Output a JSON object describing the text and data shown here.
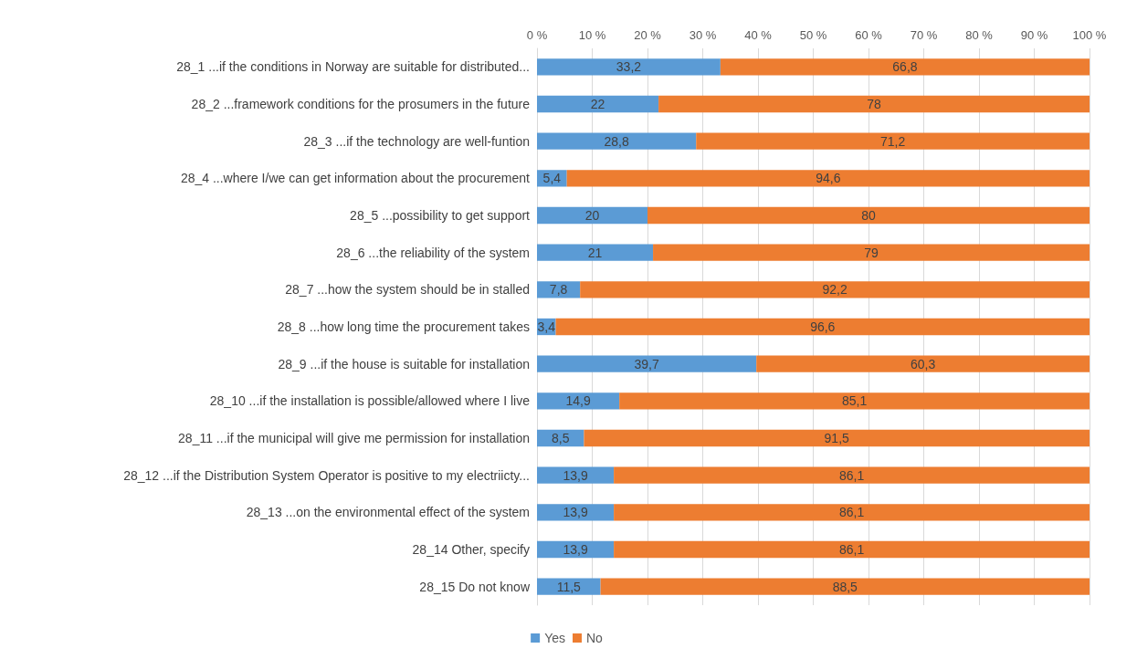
{
  "chart_data": {
    "type": "bar",
    "orientation": "horizontal",
    "stacked": true,
    "categories": [
      "28_1 ...if the conditions in Norway are suitable for distributed...",
      "28_2 ...framework conditions for the prosumers in the future",
      "28_3 ...if the technology are well-funtion",
      "28_4 ...where I/we can get information about the procurement",
      "28_5 ...possibility to get support",
      "28_6 ...the reliability of the system",
      "28_7 ...how the system should be in stalled",
      "28_8 ...how long time the procurement takes",
      "28_9 ...if the house is suitable for installation",
      "28_10 ...if the installation is possible/allowed where I live",
      "28_11 ...if the municipal will give me permission for installation",
      "28_12 ...if the Distribution System Operator is positive to my electriicty...",
      "28_13 ...on the environmental effect of the system",
      "28_14 Other, specify",
      "28_15 Do not know"
    ],
    "series": [
      {
        "name": "Yes",
        "color": "#5b9bd5",
        "values": [
          33.2,
          22,
          28.8,
          5.4,
          20,
          21,
          7.8,
          3.4,
          39.7,
          14.9,
          8.5,
          13.9,
          13.9,
          13.9,
          11.5
        ],
        "value_labels": [
          "33,2",
          "22",
          "28,8",
          "5,4",
          "20",
          "21",
          "7,8",
          "3,4",
          "39,7",
          "14,9",
          "8,5",
          "13,9",
          "13,9",
          "13,9",
          "11,5"
        ]
      },
      {
        "name": "No",
        "color": "#ed7d31",
        "values": [
          66.8,
          78,
          71.2,
          94.6,
          80,
          79,
          92.2,
          96.6,
          60.3,
          85.1,
          91.5,
          86.1,
          86.1,
          86.1,
          88.5
        ],
        "value_labels": [
          "66,8",
          "78",
          "71,2",
          "94,6",
          "80",
          "79",
          "92,2",
          "96,6",
          "60,3",
          "85,1",
          "91,5",
          "86,1",
          "86,1",
          "86,1",
          "88,5"
        ]
      }
    ],
    "xlim": [
      0,
      100
    ],
    "xticks": [
      {
        "value": 0,
        "label": "0 %"
      },
      {
        "value": 10,
        "label": "10 %"
      },
      {
        "value": 20,
        "label": "20 %"
      },
      {
        "value": 30,
        "label": "30 %"
      },
      {
        "value": 40,
        "label": "40 %"
      },
      {
        "value": 50,
        "label": "50 %"
      },
      {
        "value": 60,
        "label": "60 %"
      },
      {
        "value": 70,
        "label": "70 %"
      },
      {
        "value": 80,
        "label": "80 %"
      },
      {
        "value": 90,
        "label": "90 %"
      },
      {
        "value": 100,
        "label": "100 %"
      }
    ],
    "grid": "x",
    "legend": "bottom"
  }
}
